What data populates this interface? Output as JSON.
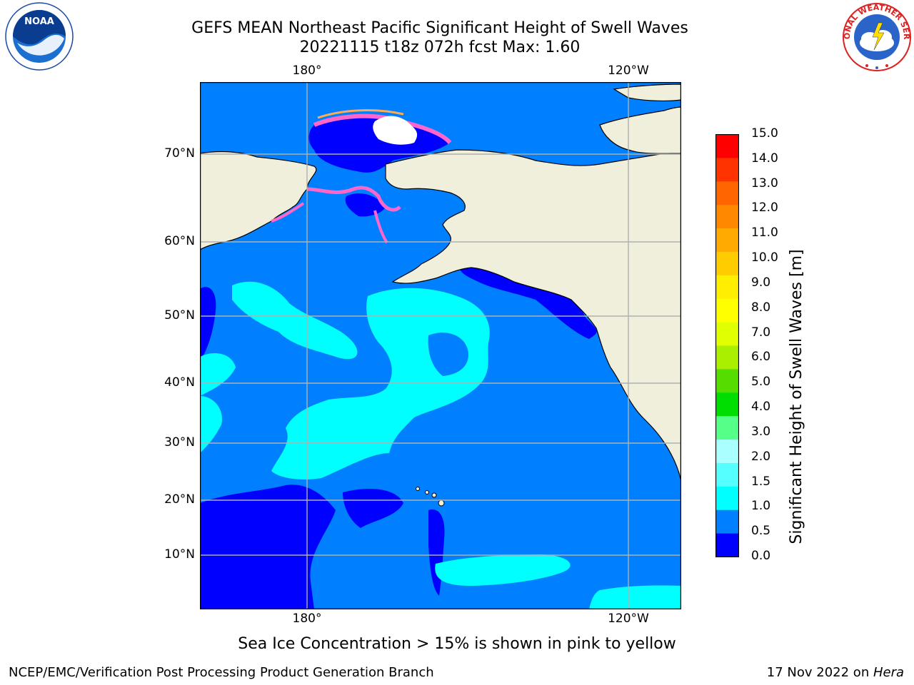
{
  "header": {
    "title_line1": "GEFS MEAN Northeast Pacific Significant Height of Swell Waves",
    "title_line2": "20221115 t18z 072h fcst   Max: 1.60"
  },
  "logos": {
    "left": "NOAA",
    "right": "NATIONAL WEATHER SERVICE"
  },
  "map": {
    "lon_labels": [
      "180°",
      "120°W"
    ],
    "lat_labels": [
      "70°N",
      "60°N",
      "50°N",
      "40°N",
      "30°N",
      "20°N",
      "10°N"
    ],
    "colors": {
      "ocean_low": "#0000ff",
      "ocean_mid": "#0080ff",
      "ocean_high": "#00ffff",
      "land": "#efefdc",
      "grid": "#b0b0b0",
      "ice_pink": "#ff66cc",
      "ice_orange": "#ffaa55"
    }
  },
  "colorbar": {
    "label": "Significant Height of Swell Waves [m]",
    "ticks": [
      "15.0",
      "14.0",
      "13.0",
      "12.0",
      "11.0",
      "10.0",
      "9.0",
      "8.0",
      "7.0",
      "6.0",
      "5.0",
      "4.0",
      "3.0",
      "2.0",
      "1.5",
      "1.0",
      "0.5",
      "0.0"
    ],
    "colors": [
      "#ff0000",
      "#ff3300",
      "#ff6600",
      "#ff8800",
      "#ffaa00",
      "#ffcc00",
      "#ffee00",
      "#ffff00",
      "#e0ff00",
      "#aaee00",
      "#55dd00",
      "#00dd00",
      "#55ff88",
      "#aaffff",
      "#55ffff",
      "#00ffff",
      "#0080ff",
      "#0000ff"
    ]
  },
  "note": "Sea Ice Concentration > 15% is shown in pink to yellow",
  "footer": {
    "left": "NCEP/EMC/Verification Post Processing Product Generation Branch",
    "right_date": "17 Nov 2022 on ",
    "right_host": "Hera"
  }
}
